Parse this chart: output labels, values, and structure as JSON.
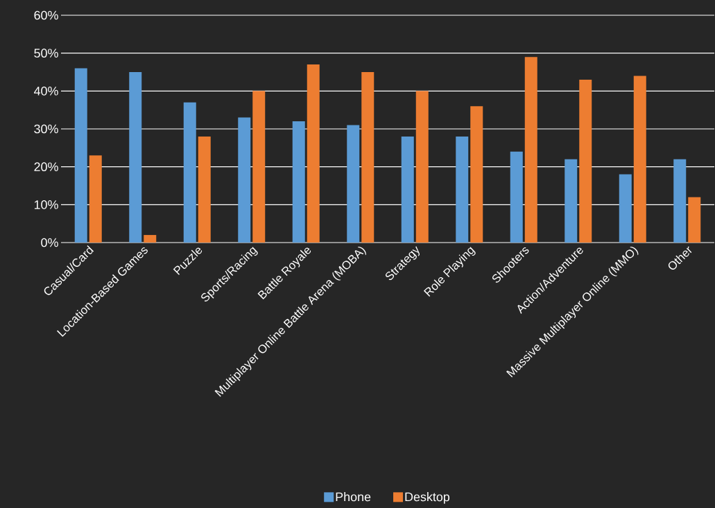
{
  "chart_data": {
    "type": "bar",
    "categories": [
      "Casual/Card",
      "Location-Based Games",
      "Puzzle",
      "Sports/Racing",
      "Battle Royale",
      "Multiplayer Online Battle Arena (MOBA)",
      "Strategy",
      "Role Playing",
      "Shooters",
      "Action/Adventure",
      "Massive Multiplayer Online (MMO)",
      "Other"
    ],
    "series": [
      {
        "name": "Phone",
        "color": "#5b9bd5",
        "values": [
          46,
          45,
          37,
          33,
          32,
          31,
          28,
          28,
          24,
          22,
          18,
          22
        ]
      },
      {
        "name": "Desktop",
        "color": "#ed7d31",
        "values": [
          23,
          2,
          28,
          40,
          47,
          45,
          40,
          36,
          49,
          43,
          44,
          12
        ]
      }
    ],
    "ylim": [
      0,
      60
    ],
    "yticks": [
      {
        "value": 0,
        "label": "0%"
      },
      {
        "value": 10,
        "label": "10%"
      },
      {
        "value": 20,
        "label": "20%"
      },
      {
        "value": 30,
        "label": "30%"
      },
      {
        "value": 40,
        "label": "40%"
      },
      {
        "value": 50,
        "label": "50%"
      },
      {
        "value": 60,
        "label": "60%"
      }
    ],
    "grid": "y",
    "legend": "bottom"
  }
}
